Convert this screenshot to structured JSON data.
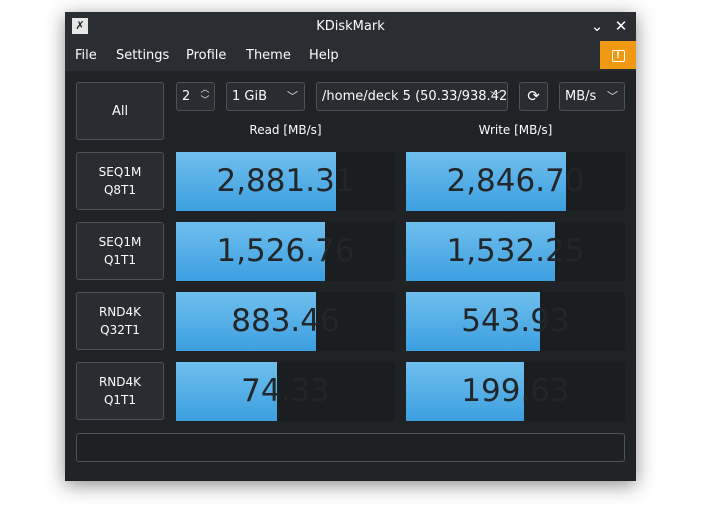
{
  "window": {
    "title": "KDiskMark",
    "app_icon": "kdiskmark-app-icon"
  },
  "titlebar_buttons": {
    "minimize": "⌄",
    "close": "✕"
  },
  "menu": [
    "File",
    "Settings",
    "Profile",
    "Theme",
    "Help"
  ],
  "notify_glyph": "!",
  "controls": {
    "all_label": "All",
    "runs": "2",
    "size": "1 GiB",
    "path": "/home/deck 5 (50.33/938.42",
    "unit": "MB/s",
    "refresh_glyph": "⟳"
  },
  "columns": {
    "read": "Read [MB/s]",
    "write": "Write [MB/s]"
  },
  "tests": [
    {
      "line1": "SEQ1M",
      "line2": "Q8T1",
      "read": "2,881.31",
      "write": "2,846.70",
      "read_pct": 0.73,
      "write_pct": 0.73
    },
    {
      "line1": "SEQ1M",
      "line2": "Q1T1",
      "read": "1,526.76",
      "write": "1,532.25",
      "read_pct": 0.68,
      "write_pct": 0.68
    },
    {
      "line1": "RND4K",
      "line2": "Q32T1",
      "read": "883.46",
      "write": "543.93",
      "read_pct": 0.64,
      "write_pct": 0.61
    },
    {
      "line1": "RND4K",
      "line2": "Q1T1",
      "read": "74.33",
      "write": "199.63",
      "read_pct": 0.46,
      "write_pct": 0.54
    }
  ],
  "status_text": ""
}
